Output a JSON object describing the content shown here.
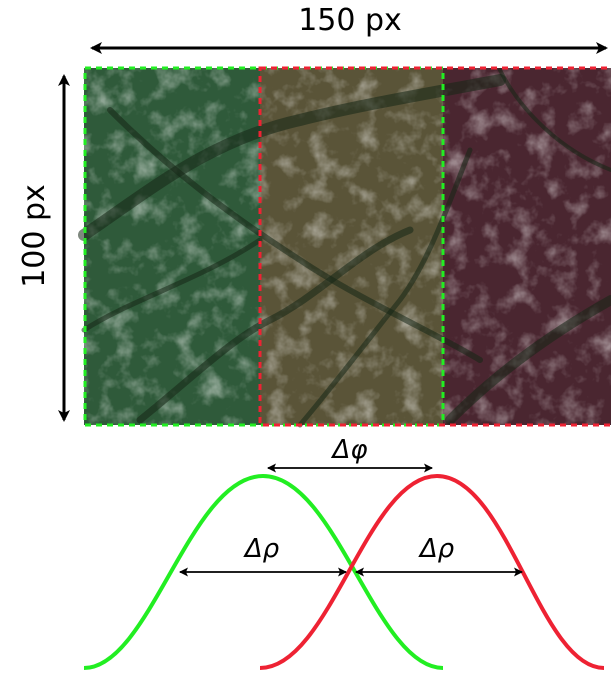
{
  "dimension_labels": {
    "width": "150 px",
    "height": "100 px"
  },
  "phase_label": "Δφ",
  "spread_labels": [
    "Δρ",
    "Δρ"
  ],
  "colors": {
    "green_window": "#22ee22",
    "red_window": "#ee2233",
    "overlap_tint": "#6b6440"
  }
}
